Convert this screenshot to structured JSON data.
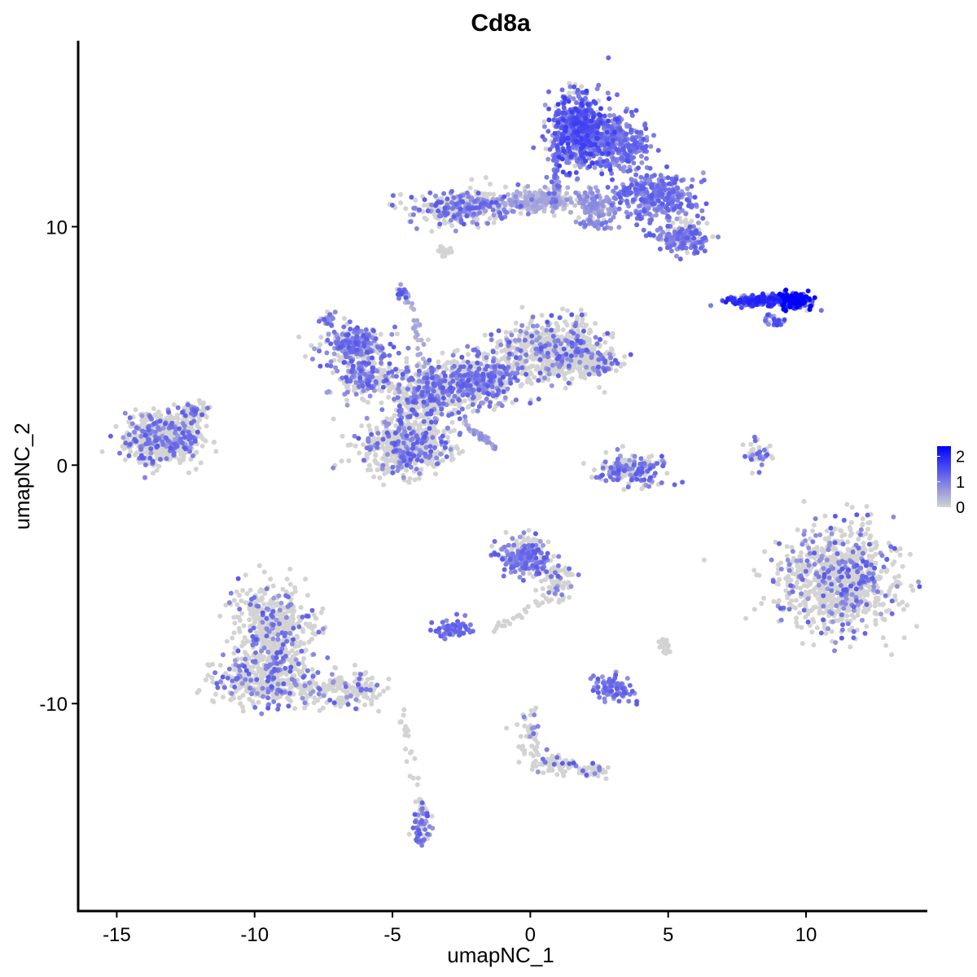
{
  "chart_data": {
    "type": "scatter",
    "title": "Cd8a",
    "xlabel": "umapNC_1",
    "ylabel": "umapNC_2",
    "xlim": [
      -16.4,
      14.4
    ],
    "ylim": [
      -18.7,
      17.8
    ],
    "x_ticks": [
      -15,
      -10,
      -5,
      0,
      5,
      10
    ],
    "x_tick_labels": [
      "-15",
      "-10",
      "-5",
      "0",
      "5",
      "10"
    ],
    "y_ticks": [
      -10,
      0,
      10
    ],
    "y_tick_labels": [
      "-10",
      "0",
      "10"
    ],
    "grid": false,
    "legend": {
      "placement": "right",
      "range": [
        0,
        2.4
      ],
      "ticks": [
        0,
        1,
        2
      ],
      "tick_labels": [
        "0",
        "1",
        "2"
      ],
      "low_color": "#d3d3d3",
      "high_color": "#0000ff"
    },
    "point_color_low": "#d3d3d3",
    "point_color_high": "#0000ff",
    "clusters": [
      {
        "center": [
          -13.3,
          1.1
        ],
        "spread": [
          1.1,
          0.8
        ],
        "count": 650,
        "expression": 0.01
      },
      {
        "center": [
          -12.2,
          2.3
        ],
        "spread": [
          0.4,
          0.3
        ],
        "count": 60,
        "expression": 0.01
      },
      {
        "center": [
          -6.4,
          5.0
        ],
        "spread": [
          1.0,
          0.7
        ],
        "count": 260,
        "expression": 0.03
      },
      {
        "center": [
          -6.0,
          3.6
        ],
        "spread": [
          0.9,
          0.6
        ],
        "count": 150,
        "expression": 0.02
      },
      {
        "center": [
          -4.5,
          0.8
        ],
        "spread": [
          1.3,
          0.9
        ],
        "count": 650,
        "expression": 0.01
      },
      {
        "center": [
          -3.7,
          3.0
        ],
        "spread": [
          1.2,
          1.0
        ],
        "count": 420,
        "expression": 0.02
      },
      {
        "center": [
          -1.8,
          3.6
        ],
        "spread": [
          1.1,
          0.8
        ],
        "count": 420,
        "expression": 0.02
      },
      {
        "center": [
          0.9,
          4.8
        ],
        "spread": [
          1.6,
          1.0
        ],
        "count": 650,
        "expression": 0.01
      },
      {
        "center": [
          2.4,
          4.3
        ],
        "spread": [
          0.7,
          0.5
        ],
        "count": 120,
        "expression": 0.01
      },
      {
        "center": [
          -2.5,
          10.8
        ],
        "spread": [
          1.7,
          0.55
        ],
        "count": 360,
        "expression": 0.02
      },
      {
        "center": [
          0.5,
          11.1
        ],
        "spread": [
          0.9,
          0.4
        ],
        "count": 180,
        "expression": 0.4
      },
      {
        "center": [
          1.8,
          14.0
        ],
        "spread": [
          0.9,
          1.2
        ],
        "count": 650,
        "expression": 1.15
      },
      {
        "center": [
          3.3,
          13.5
        ],
        "spread": [
          0.8,
          0.9
        ],
        "count": 260,
        "expression": 0.15
      },
      {
        "center": [
          4.5,
          11.3
        ],
        "spread": [
          1.2,
          0.8
        ],
        "count": 300,
        "expression": 0.05
      },
      {
        "center": [
          5.5,
          9.6
        ],
        "spread": [
          0.8,
          0.6
        ],
        "count": 200,
        "expression": 0.03
      },
      {
        "center": [
          2.4,
          10.9
        ],
        "spread": [
          0.6,
          0.5
        ],
        "count": 120,
        "expression": 0.6
      },
      {
        "center": [
          -3.1,
          9.0
        ],
        "spread": [
          0.2,
          0.2
        ],
        "count": 16,
        "expression": 0.0
      },
      {
        "center": [
          8.4,
          6.9
        ],
        "spread": [
          1.0,
          0.2
        ],
        "count": 170,
        "expression": 1.4
      },
      {
        "center": [
          9.6,
          6.9
        ],
        "spread": [
          0.5,
          0.3
        ],
        "count": 160,
        "expression": 2.0
      },
      {
        "center": [
          8.8,
          6.1
        ],
        "spread": [
          0.3,
          0.2
        ],
        "count": 25,
        "expression": 1.1
      },
      {
        "center": [
          -4.7,
          7.3
        ],
        "spread": [
          0.15,
          0.2
        ],
        "count": 20,
        "expression": 1.0
      },
      {
        "center": [
          -7.3,
          6.1
        ],
        "spread": [
          0.3,
          0.2
        ],
        "count": 20,
        "expression": 0.9
      },
      {
        "center": [
          3.6,
          -0.2
        ],
        "spread": [
          1.0,
          0.5
        ],
        "count": 200,
        "expression": 0.02
      },
      {
        "center": [
          8.2,
          0.4
        ],
        "spread": [
          0.35,
          0.5
        ],
        "count": 40,
        "expression": 0.02
      },
      {
        "center": [
          11.2,
          -4.8
        ],
        "spread": [
          1.7,
          1.8
        ],
        "count": 900,
        "expression": 0.01
      },
      {
        "center": [
          -0.2,
          -3.8
        ],
        "spread": [
          0.75,
          0.65
        ],
        "count": 260,
        "expression": 0.03
      },
      {
        "center": [
          1.0,
          -4.9
        ],
        "spread": [
          0.5,
          0.5
        ],
        "count": 80,
        "expression": 0.01
      },
      {
        "center": [
          -2.8,
          -6.9
        ],
        "spread": [
          0.6,
          0.3
        ],
        "count": 60,
        "expression": 0.05
      },
      {
        "center": [
          3.0,
          -9.4
        ],
        "spread": [
          0.6,
          0.5
        ],
        "count": 80,
        "expression": 0.1
      },
      {
        "center": [
          4.9,
          -7.5
        ],
        "spread": [
          0.2,
          0.3
        ],
        "count": 16,
        "expression": 0.0
      },
      {
        "center": [
          -9.3,
          -6.8
        ],
        "spread": [
          1.2,
          1.5
        ],
        "count": 450,
        "expression": 0.01
      },
      {
        "center": [
          -9.6,
          -9.1
        ],
        "spread": [
          1.5,
          0.8
        ],
        "count": 380,
        "expression": 0.01
      },
      {
        "center": [
          -6.7,
          -9.4
        ],
        "spread": [
          1.2,
          0.6
        ],
        "count": 160,
        "expression": 0.01
      },
      {
        "center": [
          -3.9,
          -15.2
        ],
        "spread": [
          0.3,
          0.7
        ],
        "count": 60,
        "expression": 0.03
      },
      {
        "center": [
          1.0,
          -12.5
        ],
        "spread": [
          0.8,
          0.4
        ],
        "count": 70,
        "expression": 0.01
      },
      {
        "center": [
          0.0,
          -11.4
        ],
        "spread": [
          0.3,
          0.8
        ],
        "count": 50,
        "expression": 0.01
      },
      {
        "center": [
          2.3,
          -12.8
        ],
        "spread": [
          0.4,
          0.2
        ],
        "count": 40,
        "expression": 0.01
      }
    ],
    "trails": [
      {
        "from": [
          -4.5,
          7.3
        ],
        "to": [
          -3.7,
          3.9
        ],
        "count": 35,
        "expression": 0.4
      },
      {
        "from": [
          -2.3,
          1.7
        ],
        "to": [
          -1.3,
          0.7
        ],
        "count": 30,
        "expression": 0.6
      },
      {
        "from": [
          1.0,
          13.0
        ],
        "to": [
          0.8,
          10.9
        ],
        "count": 40,
        "expression": 0.9
      },
      {
        "from": [
          1.6,
          10.2
        ],
        "to": [
          3.2,
          10.0
        ],
        "count": 30,
        "expression": 0.8
      },
      {
        "from": [
          -2.0,
          11.1
        ],
        "to": [
          0.3,
          11.0
        ],
        "count": 35,
        "expression": 0.5
      },
      {
        "from": [
          -4.7,
          -10.2
        ],
        "to": [
          -3.9,
          -14.8
        ],
        "count": 30,
        "expression": 0.01
      },
      {
        "from": [
          0.8,
          -5.5
        ],
        "to": [
          -1.5,
          -7.0
        ],
        "count": 25,
        "expression": 0.01
      },
      {
        "from": [
          -6.8,
          5.5
        ],
        "to": [
          -4.5,
          2.8
        ],
        "count": 40,
        "expression": 0.02
      },
      {
        "from": [
          7.1,
          6.9
        ],
        "to": [
          10.0,
          6.9
        ],
        "count": 60,
        "expression": 1.5
      }
    ]
  }
}
